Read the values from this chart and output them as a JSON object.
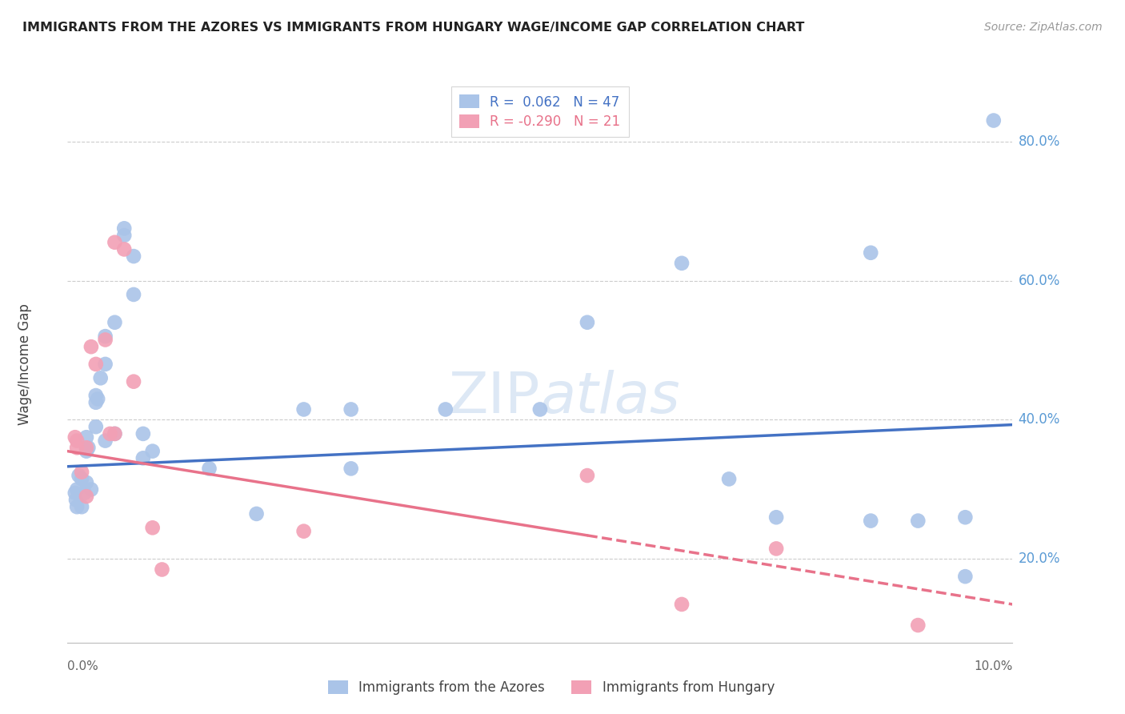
{
  "title": "IMMIGRANTS FROM THE AZORES VS IMMIGRANTS FROM HUNGARY WAGE/INCOME GAP CORRELATION CHART",
  "source": "Source: ZipAtlas.com",
  "ylabel": "Wage/Income Gap",
  "watermark_zip": "ZIP",
  "watermark_atlas": "atlas",
  "azores_color": "#aac4e8",
  "hungary_color": "#f2a0b5",
  "azores_line_color": "#4472c4",
  "hungary_line_color": "#e8728a",
  "xlim": [
    0.0,
    0.1
  ],
  "ylim": [
    0.08,
    0.88
  ],
  "ytick_positions": [
    0.2,
    0.4,
    0.6,
    0.8
  ],
  "ytick_labels": [
    "20.0%",
    "40.0%",
    "60.0%",
    "80.0%"
  ],
  "azores_x": [
    0.0008,
    0.0009,
    0.001,
    0.001,
    0.0012,
    0.0015,
    0.0015,
    0.0018,
    0.002,
    0.002,
    0.002,
    0.0022,
    0.0025,
    0.003,
    0.003,
    0.003,
    0.0032,
    0.0035,
    0.004,
    0.004,
    0.004,
    0.005,
    0.005,
    0.006,
    0.006,
    0.007,
    0.007,
    0.008,
    0.008,
    0.009,
    0.015,
    0.02,
    0.025,
    0.03,
    0.03,
    0.04,
    0.05,
    0.055,
    0.065,
    0.07,
    0.075,
    0.085,
    0.085,
    0.09,
    0.095,
    0.095,
    0.098
  ],
  "azores_y": [
    0.295,
    0.285,
    0.3,
    0.275,
    0.32,
    0.315,
    0.275,
    0.295,
    0.375,
    0.31,
    0.355,
    0.36,
    0.3,
    0.425,
    0.435,
    0.39,
    0.43,
    0.46,
    0.52,
    0.48,
    0.37,
    0.54,
    0.38,
    0.665,
    0.675,
    0.635,
    0.58,
    0.38,
    0.345,
    0.355,
    0.33,
    0.265,
    0.415,
    0.33,
    0.415,
    0.415,
    0.415,
    0.54,
    0.625,
    0.315,
    0.26,
    0.255,
    0.64,
    0.255,
    0.175,
    0.26,
    0.83
  ],
  "hungary_x": [
    0.0008,
    0.001,
    0.001,
    0.0015,
    0.002,
    0.002,
    0.0025,
    0.003,
    0.004,
    0.0045,
    0.005,
    0.005,
    0.006,
    0.007,
    0.009,
    0.01,
    0.025,
    0.055,
    0.065,
    0.075,
    0.09
  ],
  "hungary_y": [
    0.375,
    0.36,
    0.37,
    0.325,
    0.36,
    0.29,
    0.505,
    0.48,
    0.515,
    0.38,
    0.655,
    0.38,
    0.645,
    0.455,
    0.245,
    0.185,
    0.24,
    0.32,
    0.135,
    0.215,
    0.105
  ],
  "azores_line_intercept": 0.333,
  "azores_line_slope": 0.6,
  "hungary_line_intercept": 0.355,
  "hungary_line_slope": -2.2
}
